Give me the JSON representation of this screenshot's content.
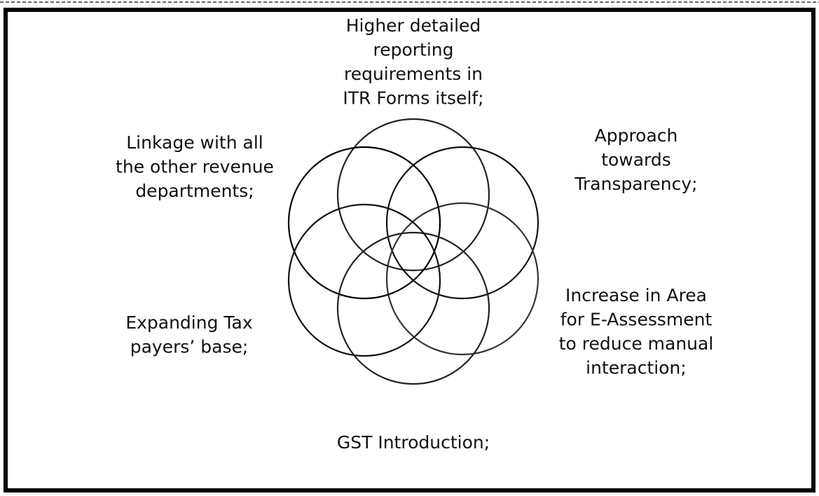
{
  "nodes": [
    {
      "lines": [
        "Higher detailed",
        "reporting",
        "requirements in",
        "ITR Forms itself;"
      ]
    },
    {
      "lines": [
        "Approach",
        "towards",
        "Transparency;"
      ]
    },
    {
      "lines": [
        "Increase in Area",
        "for E-Assessment",
        "to reduce manual",
        "interaction;"
      ]
    },
    {
      "lines": [
        "GST Introduction;"
      ]
    },
    {
      "lines": [
        "Expanding Tax",
        "payers’ base;"
      ]
    },
    {
      "lines": [
        "Linkage with all",
        "the other revenue",
        "departments;"
      ]
    }
  ]
}
